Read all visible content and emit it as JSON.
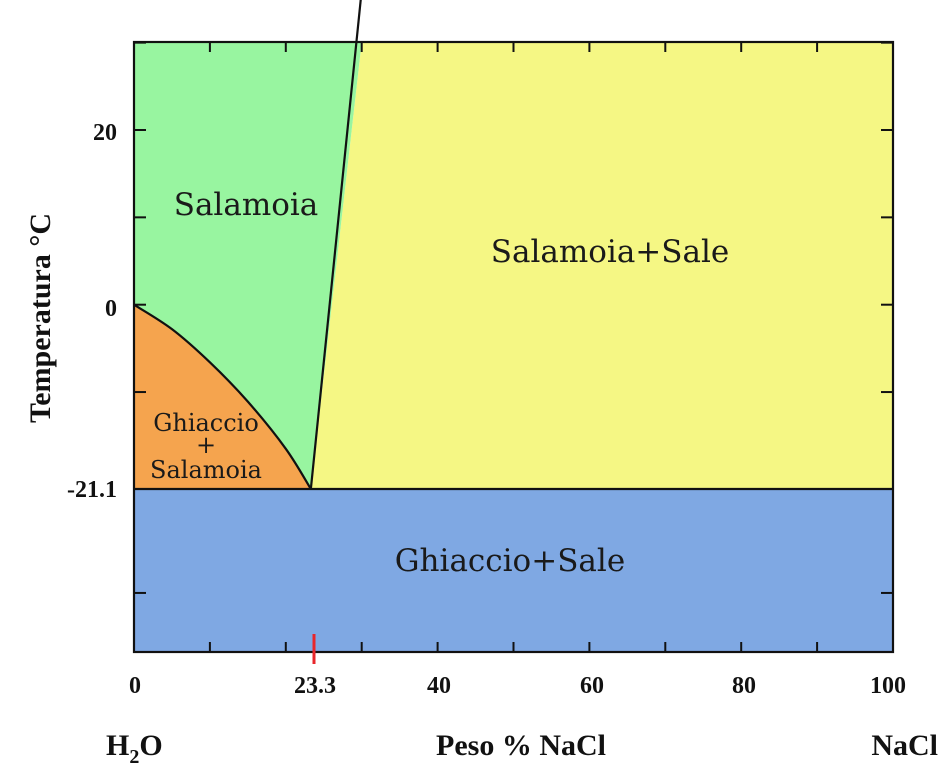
{
  "chart_data": {
    "type": "phase-diagram",
    "xlabel": "Peso % NaCl",
    "ylabel": "Temperatura °C",
    "xlim": [
      0,
      100
    ],
    "ylim": [
      -45,
      36
    ],
    "x_ticks": [
      "0",
      "23.3",
      "40",
      "60",
      "80",
      "100"
    ],
    "y_ticks": [
      "20",
      "0",
      "-21.1"
    ],
    "x_minor_ticks": [
      0,
      10,
      20,
      30,
      40,
      50,
      60,
      70,
      80,
      90,
      100
    ],
    "y_minor_ticks": [
      -33,
      -21.1,
      -10,
      0,
      10,
      20,
      30
    ],
    "eutectic": {
      "x": 23.3,
      "t": -21.1
    },
    "eutectic_marker_color": "#e8262b",
    "end_labels": {
      "left": "H",
      "left_sub": "2",
      "left_tail": "O",
      "right": "NaCl"
    },
    "boundaries": {
      "liquidus_ice": [
        [
          0,
          0
        ],
        [
          5,
          -2.8
        ],
        [
          10,
          -6.6
        ],
        [
          15,
          -11.1
        ],
        [
          20,
          -16.5
        ],
        [
          23.3,
          -21.1
        ]
      ],
      "liquidus_salt": [
        [
          23.3,
          -21.1
        ],
        [
          30,
          36
        ]
      ],
      "eutectic_line": [
        [
          0,
          -21.1
        ],
        [
          100,
          -21.1
        ]
      ]
    },
    "regions": [
      {
        "name": "Salamoia",
        "color": "#98f5a0"
      },
      {
        "name": "Salamoia+Sale",
        "color": "#f5f784"
      },
      {
        "name": "Ghiaccio+Sale",
        "color": "#7fa8e3"
      },
      {
        "name": "Ghiaccio",
        "name2": "+",
        "name3": "Salamoia",
        "color": "#f5a44e"
      }
    ]
  }
}
